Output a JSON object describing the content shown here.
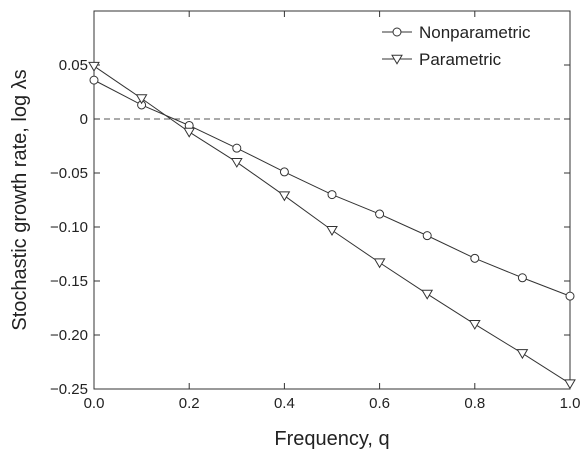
{
  "chart_data": {
    "type": "line",
    "xlabel": "Frequency, q",
    "ylabel": "Stochastic growth rate, log λs",
    "xlim": [
      0,
      1
    ],
    "ylim": [
      -0.25,
      0.1
    ],
    "xticks": [
      0,
      0.2,
      0.4,
      0.6,
      0.8,
      1.0
    ],
    "xtick_labels": [
      "0.0",
      "0.2",
      "0.4",
      "0.6",
      "0.8",
      "1.0"
    ],
    "yticks": [
      -0.25,
      -0.2,
      -0.15,
      -0.1,
      -0.05,
      0,
      0.05
    ],
    "ytick_labels": [
      "−0.25",
      "−0.20",
      "−0.15",
      "−0.10",
      "−0.05",
      "0",
      "0.05"
    ],
    "reference_line": {
      "y": 0,
      "style": "dashed"
    },
    "grid": false,
    "legend_position": "top-right",
    "x": [
      0,
      0.1,
      0.2,
      0.3,
      0.4,
      0.5,
      0.6,
      0.7,
      0.8,
      0.9,
      1.0
    ],
    "series": [
      {
        "name": "Nonparametric",
        "marker": "circle",
        "values": [
          0.036,
          0.013,
          -0.006,
          -0.027,
          -0.049,
          -0.07,
          -0.088,
          -0.108,
          -0.129,
          -0.147,
          -0.164
        ]
      },
      {
        "name": "Parametric",
        "marker": "triangle-down",
        "values": [
          0.049,
          0.019,
          -0.012,
          -0.04,
          -0.071,
          -0.103,
          -0.133,
          -0.162,
          -0.19,
          -0.217,
          -0.245
        ]
      }
    ],
    "color": "#333333"
  }
}
